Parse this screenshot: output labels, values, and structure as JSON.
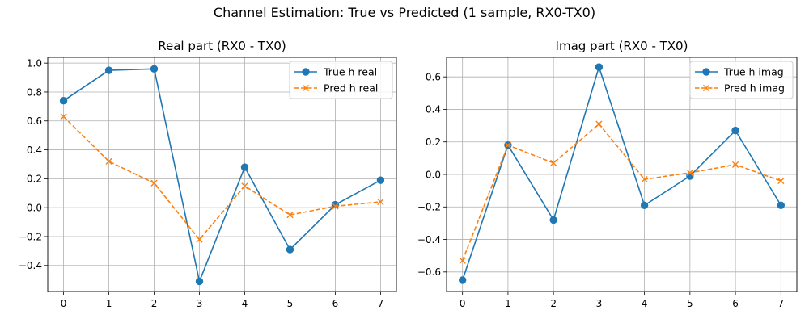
{
  "figure": {
    "title": "Channel Estimation: True vs Predicted (1 sample, RX0-TX0)"
  },
  "colors": {
    "true": "#1f77b4",
    "pred": "#ff7f0e",
    "grid": "#b0b0b0"
  },
  "chart_data": [
    {
      "type": "line",
      "title": "Real part (RX0 - TX0)",
      "xlabel": "",
      "ylabel": "",
      "x": [
        0,
        1,
        2,
        3,
        4,
        5,
        6,
        7
      ],
      "xlim": [
        -0.35,
        7.35
      ],
      "ylim": [
        -0.58,
        1.04
      ],
      "xticks": [
        0,
        1,
        2,
        3,
        4,
        5,
        6,
        7
      ],
      "yticks": [
        -0.4,
        -0.2,
        0.0,
        0.2,
        0.4,
        0.6,
        0.8,
        1.0
      ],
      "ytick_labels": [
        "−0.4",
        "−0.2",
        "0.0",
        "0.2",
        "0.4",
        "0.6",
        "0.8",
        "1.0"
      ],
      "grid": true,
      "legend_position": "upper right",
      "series": [
        {
          "name": "True h real",
          "style": "solid",
          "marker": "circle",
          "color_key": "true",
          "values": [
            0.74,
            0.95,
            0.96,
            -0.51,
            0.28,
            -0.29,
            0.02,
            0.19
          ]
        },
        {
          "name": "Pred h real",
          "style": "dashed",
          "marker": "x",
          "color_key": "pred",
          "values": [
            0.63,
            0.32,
            0.17,
            -0.22,
            0.15,
            -0.05,
            0.01,
            0.04
          ]
        }
      ]
    },
    {
      "type": "line",
      "title": "Imag part (RX0 - TX0)",
      "xlabel": "",
      "ylabel": "",
      "x": [
        0,
        1,
        2,
        3,
        4,
        5,
        6,
        7
      ],
      "xlim": [
        -0.35,
        7.35
      ],
      "ylim": [
        -0.72,
        0.72
      ],
      "xticks": [
        0,
        1,
        2,
        3,
        4,
        5,
        6,
        7
      ],
      "yticks": [
        -0.6,
        -0.4,
        -0.2,
        0.0,
        0.2,
        0.4,
        0.6
      ],
      "ytick_labels": [
        "−0.6",
        "−0.4",
        "−0.2",
        "0.0",
        "0.2",
        "0.4",
        "0.6"
      ],
      "grid": true,
      "legend_position": "upper right",
      "series": [
        {
          "name": "True h imag",
          "style": "solid",
          "marker": "circle",
          "color_key": "true",
          "values": [
            -0.65,
            0.18,
            -0.28,
            0.66,
            -0.19,
            -0.01,
            0.27,
            -0.19
          ]
        },
        {
          "name": "Pred h imag",
          "style": "dashed",
          "marker": "x",
          "color_key": "pred",
          "values": [
            -0.53,
            0.18,
            0.07,
            0.31,
            -0.03,
            0.01,
            0.06,
            -0.04
          ]
        }
      ]
    }
  ]
}
